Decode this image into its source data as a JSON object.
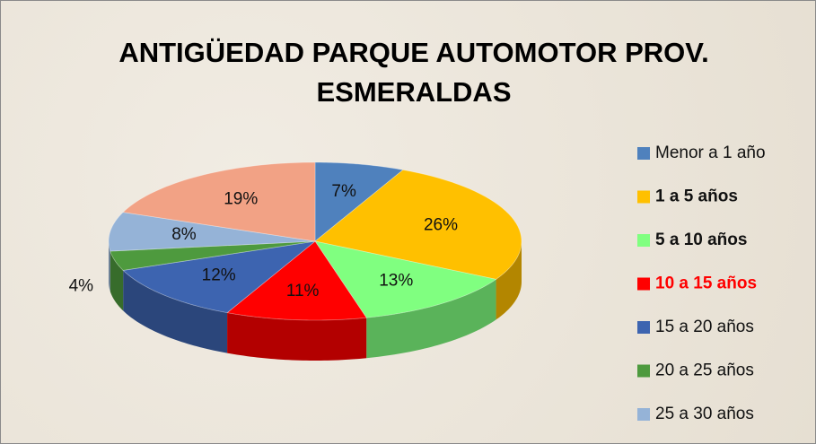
{
  "chart_data": {
    "type": "pie3d",
    "title": "ANTIGÜEDAD PARQUE AUTOMOTOR PROV. ESMERALDAS",
    "categories": [
      "Menor a  1 año",
      "1 a 5 años",
      "5 a 10 años",
      "10 a 15 años",
      "15 a 20 años",
      "20 a 25 años",
      "25 a 30 años",
      null
    ],
    "values": [
      7,
      26,
      13,
      11,
      12,
      4,
      8,
      19
    ],
    "value_labels": [
      "7%",
      "26%",
      "13%",
      "11%",
      "12%",
      "4%",
      "8%",
      "19%"
    ],
    "colors": [
      "#4f81bd",
      "#ffc000",
      "#80ff80",
      "#ff0000",
      "#3d64b0",
      "#4e9a3e",
      "#95b3d7",
      "#f2a285"
    ],
    "legend": "right"
  }
}
